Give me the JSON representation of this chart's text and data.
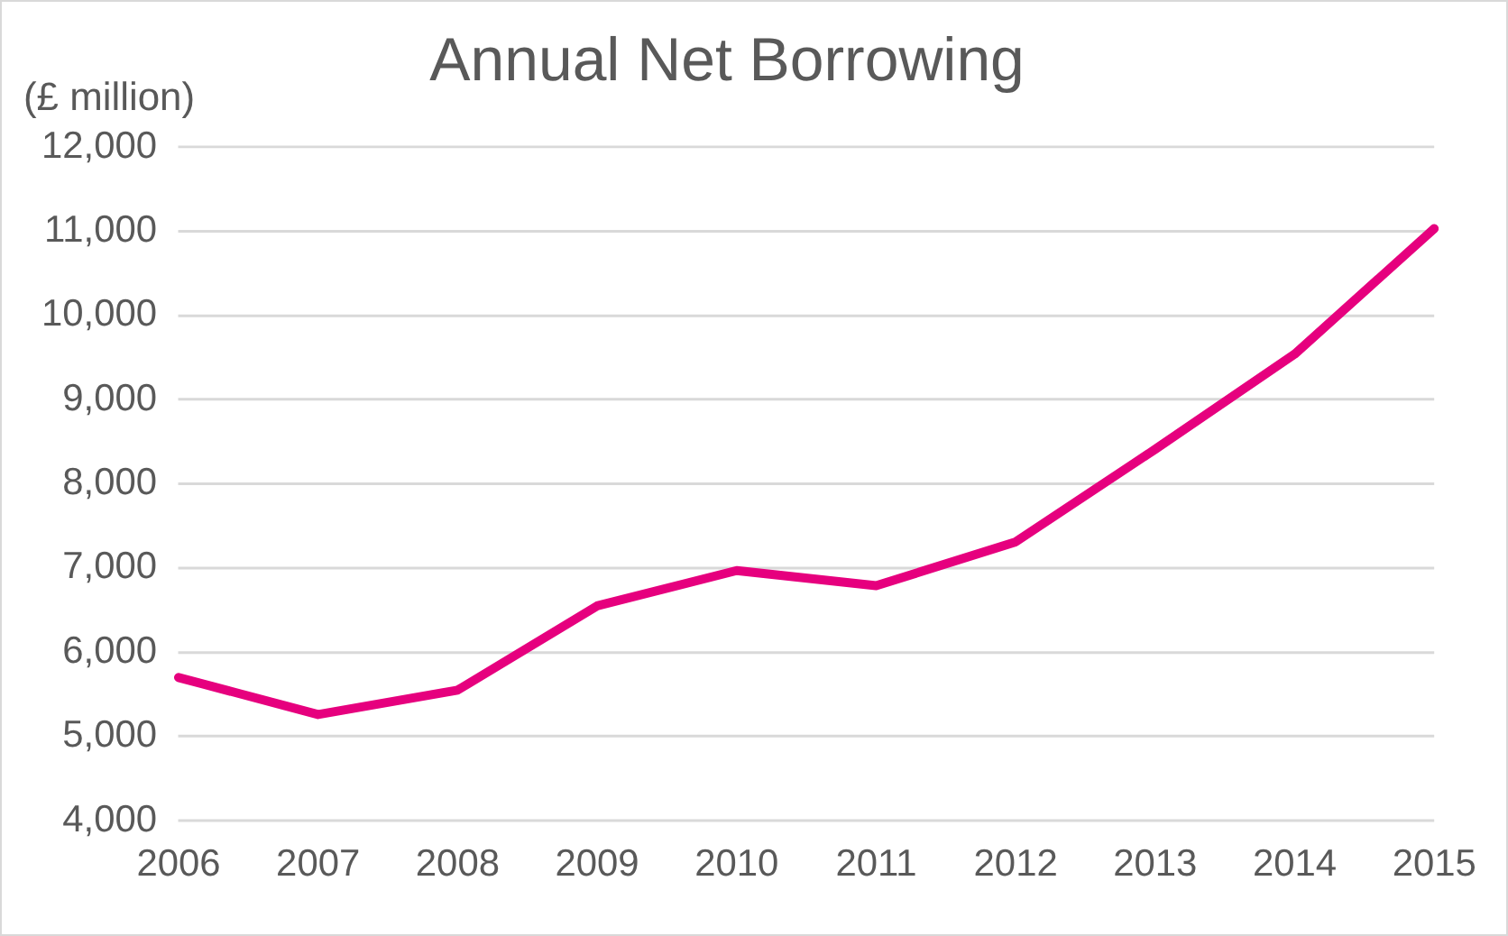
{
  "chart_data": {
    "type": "line",
    "title": "Annual Net Borrowing",
    "ylabel": "(£ million)",
    "categories": [
      "2006",
      "2007",
      "2008",
      "2009",
      "2010",
      "2011",
      "2012",
      "2013",
      "2014",
      "2015"
    ],
    "series": [
      {
        "color": "#e6007e",
        "values": [
          5700,
          5260,
          5550,
          6550,
          6970,
          6790,
          7310,
          8410,
          9540,
          11030
        ]
      }
    ],
    "ylim": [
      4000,
      12000
    ],
    "yticks": [
      {
        "value": 4000,
        "label": "4,000"
      },
      {
        "value": 5000,
        "label": "5,000"
      },
      {
        "value": 6000,
        "label": "6,000"
      },
      {
        "value": 7000,
        "label": "7,000"
      },
      {
        "value": 8000,
        "label": "8,000"
      },
      {
        "value": 9000,
        "label": "9,000"
      },
      {
        "value": 10000,
        "label": "10,000"
      },
      {
        "value": 11000,
        "label": "11,000"
      },
      {
        "value": 12000,
        "label": "12,000"
      }
    ],
    "grid": "y",
    "legend": false,
    "marker": "none",
    "line_style": "solid"
  }
}
